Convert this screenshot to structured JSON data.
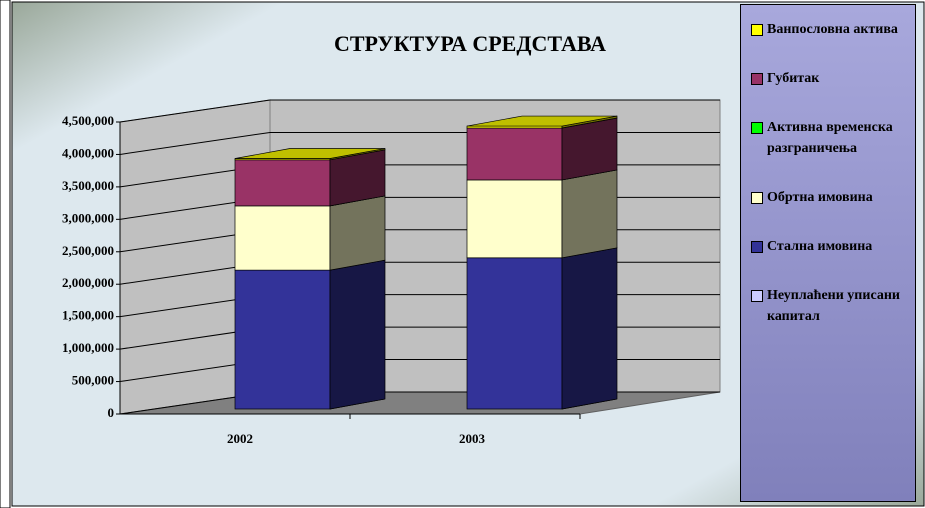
{
  "chart_data": {
    "type": "bar3d-stacked",
    "title": "СТРУКТУРА СРЕДСТАВА",
    "categories": [
      "2002",
      "2003"
    ],
    "series": [
      {
        "name": "Неуплаћени уписани капитал",
        "color": "#ccccff",
        "values": [
          0,
          0
        ]
      },
      {
        "name": "Стална имовина",
        "color": "#333399",
        "values": [
          2140000,
          2330000
        ]
      },
      {
        "name": "Обртна имовина",
        "color": "#ffffcc",
        "values": [
          990000,
          1200000
        ]
      },
      {
        "name": "Активна временска разграничења",
        "color": "#00ff00",
        "values": [
          0,
          0
        ]
      },
      {
        "name": "Губитак",
        "color": "#993366",
        "values": [
          710000,
          800000
        ]
      },
      {
        "name": "Ванпословна актива",
        "color": "#ffff00",
        "values": [
          20000,
          30000
        ]
      }
    ],
    "ylim": [
      0,
      4500000
    ],
    "yticks": [
      0,
      {
        "value": 500000,
        "label": "500,000"
      },
      {
        "value": 1000000,
        "label": "1,000,000"
      },
      {
        "value": 1500000,
        "label": "1,500,000"
      },
      {
        "value": 2000000,
        "label": "2,000,000"
      },
      {
        "value": 2500000,
        "label": "2,500,000"
      },
      {
        "value": 3000000,
        "label": "3,000,000"
      },
      {
        "value": 3500000,
        "label": "3,500,000"
      },
      {
        "value": 4000000,
        "label": "4,000,000"
      },
      {
        "value": 4500000,
        "label": "4,500,000"
      }
    ],
    "grid": true
  }
}
